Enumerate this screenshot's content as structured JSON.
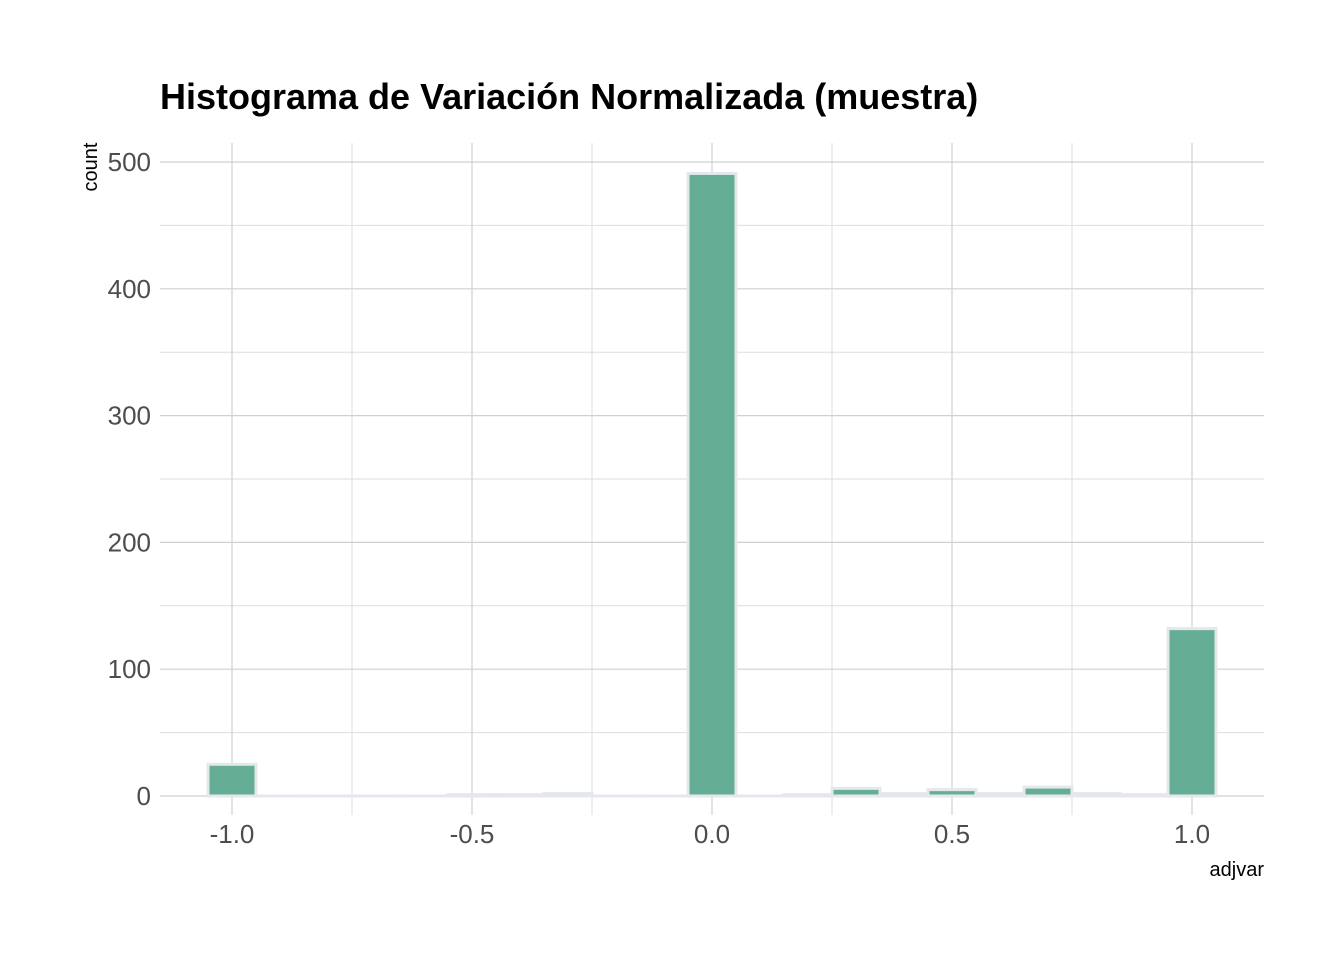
{
  "chart_data": {
    "type": "bar",
    "title": "Histograma de Variación Normalizada (muestra)",
    "xlabel": "adjvar",
    "ylabel": "count",
    "xlim": [
      -1.15,
      1.15
    ],
    "ylim": [
      -15,
      515
    ],
    "x_ticks": [
      -1.0,
      -0.5,
      0.0,
      0.5,
      1.0
    ],
    "x_tick_labels": [
      "-1.0",
      "-0.5",
      "0.0",
      "0.5",
      "1.0"
    ],
    "y_ticks": [
      0,
      100,
      200,
      300,
      400,
      500
    ],
    "y_tick_labels": [
      "0",
      "100",
      "200",
      "300",
      "400",
      "500"
    ],
    "grid": true,
    "bin_width": 0.1,
    "bars": [
      {
        "x": -1.0,
        "count": 25
      },
      {
        "x": -0.9,
        "count": 0
      },
      {
        "x": -0.8,
        "count": 0
      },
      {
        "x": -0.7,
        "count": 0
      },
      {
        "x": -0.6,
        "count": 0
      },
      {
        "x": -0.5,
        "count": 1
      },
      {
        "x": -0.4,
        "count": 1
      },
      {
        "x": -0.3,
        "count": 2
      },
      {
        "x": -0.2,
        "count": 0
      },
      {
        "x": -0.1,
        "count": 0
      },
      {
        "x": 0.0,
        "count": 491
      },
      {
        "x": 0.1,
        "count": 0
      },
      {
        "x": 0.2,
        "count": 1
      },
      {
        "x": 0.3,
        "count": 6
      },
      {
        "x": 0.4,
        "count": 2
      },
      {
        "x": 0.5,
        "count": 5
      },
      {
        "x": 0.6,
        "count": 2
      },
      {
        "x": 0.7,
        "count": 7
      },
      {
        "x": 0.8,
        "count": 2
      },
      {
        "x": 0.9,
        "count": 1
      },
      {
        "x": 1.0,
        "count": 132
      }
    ],
    "colors": {
      "bar_fill": "#66ad96",
      "bar_outline": "#e4e8ec",
      "grid_major": "#d0d0d0",
      "grid_minor": "#dedede"
    }
  }
}
